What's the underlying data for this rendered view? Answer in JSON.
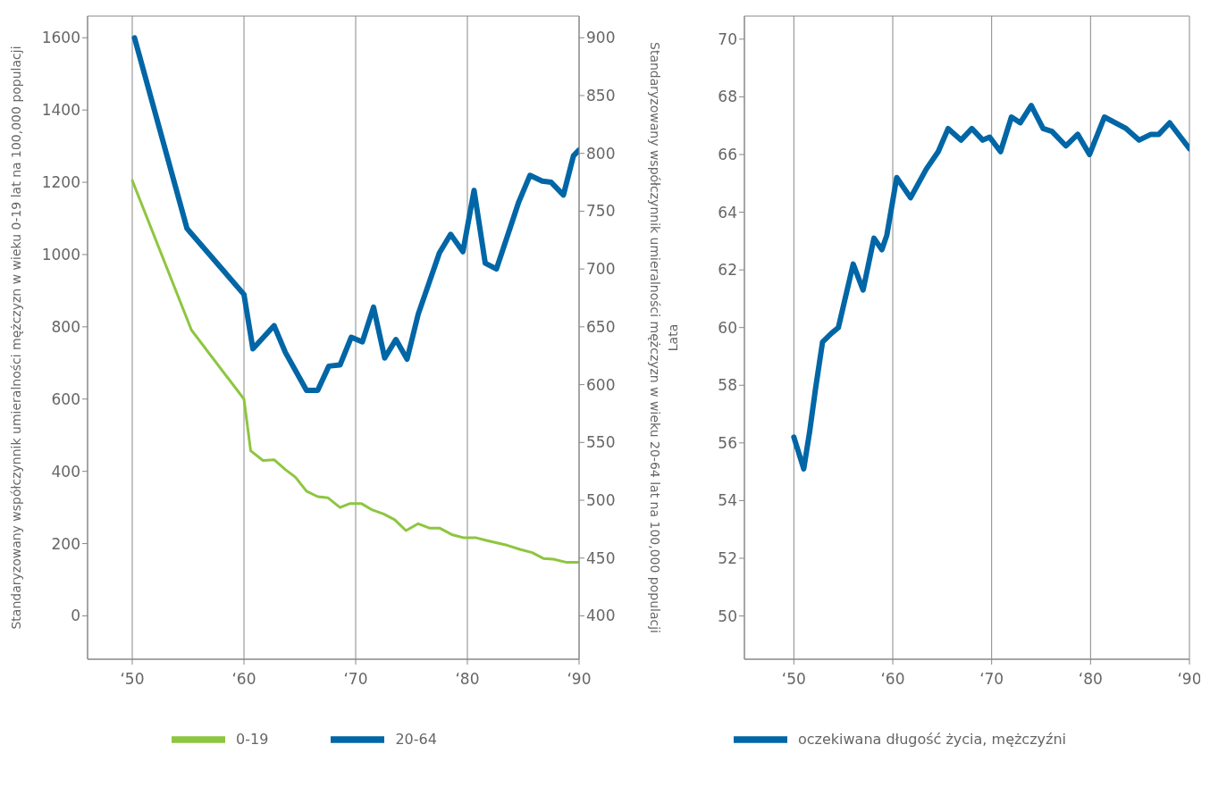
{
  "chart_data": [
    {
      "type": "line",
      "ylabel": "Standaryzowany współczynnik umieralności mężczyzn w wieku 0-19 lat na 100,000 populacji",
      "y2label": "Standaryzowany współczynnik umieralności mężczyzn w wieku 20-64 lat na 100,000 populacji",
      "xlim": [
        46,
        90
      ],
      "xticks": [
        {
          "value": 50,
          "label": "‘50"
        },
        {
          "value": 60,
          "label": "‘60"
        },
        {
          "value": 70,
          "label": "‘70"
        },
        {
          "value": 80,
          "label": "‘80"
        },
        {
          "value": 90,
          "label": "‘90"
        }
      ],
      "ylim": [
        -120,
        1660
      ],
      "yticks": [
        0,
        200,
        400,
        600,
        800,
        1000,
        1200,
        1400,
        1600
      ],
      "y2lim": [
        362.5,
        918.75
      ],
      "y2ticks": [
        400,
        450,
        500,
        550,
        600,
        650,
        700,
        750,
        800,
        850,
        900
      ],
      "grid": true,
      "legend": "bottom",
      "marker": "none",
      "line_style": "solid",
      "series": [
        {
          "name": "0-19",
          "color": "#8dc63f",
          "x": [
            50,
            55.3,
            60,
            60.6,
            61.7,
            62.7,
            63.7,
            64.6,
            65.6,
            66.6,
            67.5,
            68.6,
            69.5,
            70.5,
            71.5,
            72.5,
            73.5,
            74.5,
            75.6,
            76.6,
            77.5,
            78.6,
            79.7,
            80.8,
            81.7,
            83.6,
            84.7,
            85.8,
            86.8,
            87.7,
            88.9,
            90
          ],
          "values": [
            1205,
            791,
            600,
            457,
            430,
            432,
            405,
            384,
            345,
            330,
            327,
            300,
            311,
            311,
            293,
            282,
            266,
            236,
            255,
            243,
            243,
            225,
            216,
            216,
            209,
            195,
            184,
            175,
            159,
            157,
            148,
            148
          ]
        },
        {
          "name": "20-64",
          "color": "#0066a6",
          "axis": "y2",
          "x": [
            50.2,
            54.9,
            60,
            60.8,
            62.7,
            63.7,
            65.6,
            66.6,
            67.6,
            68.6,
            69.6,
            70.6,
            71.6,
            72.6,
            73.6,
            74.6,
            75.6,
            77.5,
            78.5,
            79.6,
            80.6,
            81.6,
            82.6,
            84.6,
            85.6,
            86.7,
            87.5,
            88.6,
            89.5,
            90
          ],
          "values": [
            900,
            735,
            678,
            631,
            651,
            628,
            595,
            595,
            616,
            617,
            641,
            637,
            667,
            623,
            639,
            622,
            661,
            714,
            730,
            715,
            768,
            705,
            700,
            758,
            781,
            776,
            775,
            764,
            798,
            803
          ]
        }
      ]
    },
    {
      "type": "line",
      "ylabel": "Lata",
      "xlim": [
        45,
        90
      ],
      "xticks": [
        {
          "value": 50,
          "label": "‘50"
        },
        {
          "value": 60,
          "label": "‘60"
        },
        {
          "value": 70,
          "label": "‘70"
        },
        {
          "value": 80,
          "label": "‘80"
        },
        {
          "value": 90,
          "label": "‘90"
        }
      ],
      "ylim": [
        48.5,
        70.8
      ],
      "yticks": [
        50,
        52,
        54,
        56,
        58,
        60,
        62,
        64,
        66,
        68,
        70
      ],
      "grid": true,
      "legend": "bottom",
      "marker": "none",
      "line_style": "solid",
      "series": [
        {
          "name": "oczekiwana długość życia, mężczyźni",
          "color": "#0066a6",
          "x": [
            50,
            51,
            51.6,
            52.2,
            52.9,
            53.8,
            54.5,
            56,
            57,
            58.1,
            58.9,
            59.4,
            60.4,
            61.8,
            63.4,
            64.6,
            65.6,
            66.9,
            68,
            69.1,
            69.8,
            70.9,
            72,
            72.9,
            74,
            75.2,
            76.1,
            77.5,
            78.7,
            79.9,
            81.4,
            83.6,
            84.9,
            86.1,
            86.9,
            88,
            90
          ],
          "values": [
            56.2,
            55.1,
            56.4,
            57.9,
            59.5,
            59.8,
            60,
            62.2,
            61.3,
            63.1,
            62.7,
            63.2,
            65.2,
            64.5,
            65.5,
            66.1,
            66.9,
            66.5,
            66.9,
            66.5,
            66.6,
            66.1,
            67.3,
            67.1,
            67.7,
            66.9,
            66.8,
            66.3,
            66.7,
            66,
            67.3,
            66.9,
            66.5,
            66.7,
            66.7,
            67.1,
            66.2
          ]
        }
      ]
    }
  ]
}
